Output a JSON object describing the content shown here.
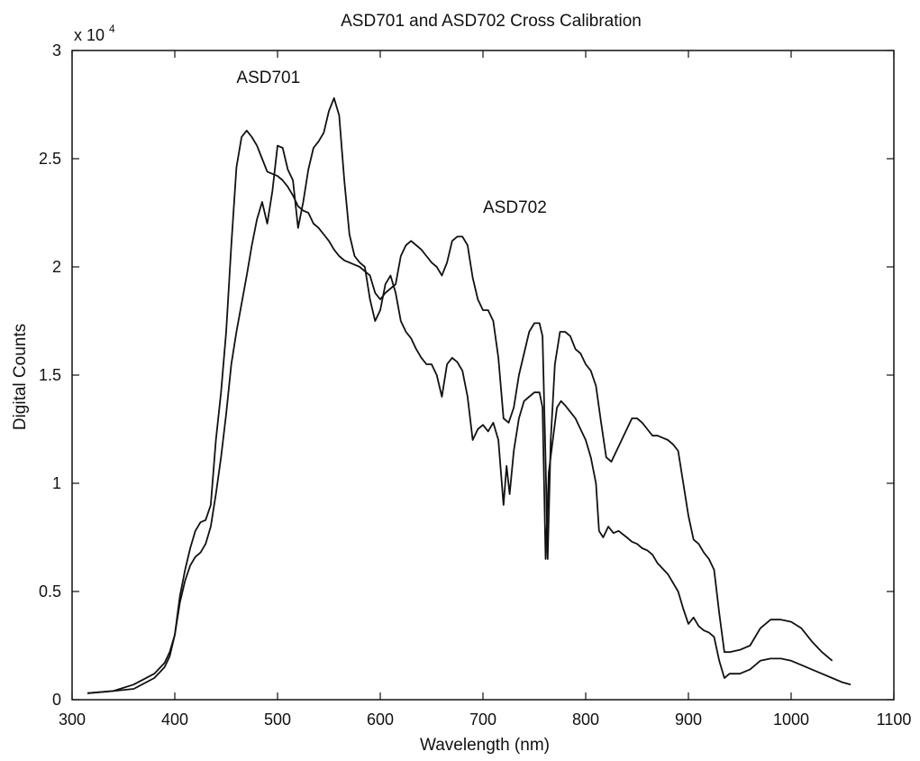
{
  "chart_data": {
    "type": "line",
    "title": "ASD701 and ASD702 Cross Calibration",
    "xlabel": "Wavelength (nm)",
    "ylabel": "Digital Counts",
    "xlim": [
      300,
      1100
    ],
    "ylim": [
      0,
      3
    ],
    "y_multiplier_base": "x 10",
    "y_multiplier_exponent": "4",
    "xticks": [
      300,
      400,
      500,
      600,
      700,
      800,
      900,
      1000,
      1100
    ],
    "xtick_labels": [
      "300",
      "400",
      "500",
      "600",
      "700",
      "800",
      "900",
      "1000",
      "1100"
    ],
    "yticks": [
      0,
      0.5,
      1,
      1.5,
      2,
      2.5,
      3
    ],
    "ytick_labels": [
      "0",
      "0.5",
      "1",
      "1.5",
      "2",
      "2.5",
      "3"
    ],
    "grid": false,
    "series": [
      {
        "name": "ASD701",
        "label_pos": [
          460,
          2.85
        ],
        "points": [
          [
            315,
            0.03
          ],
          [
            340,
            0.04
          ],
          [
            360,
            0.07
          ],
          [
            380,
            0.12
          ],
          [
            390,
            0.17
          ],
          [
            395,
            0.22
          ],
          [
            400,
            0.3
          ],
          [
            405,
            0.48
          ],
          [
            410,
            0.6
          ],
          [
            415,
            0.7
          ],
          [
            420,
            0.78
          ],
          [
            425,
            0.82
          ],
          [
            430,
            0.83
          ],
          [
            435,
            0.9
          ],
          [
            440,
            1.2
          ],
          [
            445,
            1.42
          ],
          [
            450,
            1.7
          ],
          [
            455,
            2.1
          ],
          [
            460,
            2.46
          ],
          [
            465,
            2.6
          ],
          [
            470,
            2.63
          ],
          [
            475,
            2.6
          ],
          [
            480,
            2.56
          ],
          [
            485,
            2.5
          ],
          [
            490,
            2.44
          ],
          [
            495,
            2.43
          ],
          [
            500,
            2.42
          ],
          [
            505,
            2.4
          ],
          [
            510,
            2.37
          ],
          [
            515,
            2.33
          ],
          [
            520,
            2.28
          ],
          [
            525,
            2.26
          ],
          [
            530,
            2.25
          ],
          [
            535,
            2.2
          ],
          [
            540,
            2.18
          ],
          [
            545,
            2.15
          ],
          [
            550,
            2.12
          ],
          [
            555,
            2.08
          ],
          [
            560,
            2.05
          ],
          [
            565,
            2.03
          ],
          [
            570,
            2.02
          ],
          [
            575,
            2.01
          ],
          [
            580,
            2.0
          ],
          [
            585,
            1.98
          ],
          [
            590,
            1.96
          ],
          [
            595,
            1.88
          ],
          [
            600,
            1.85
          ],
          [
            605,
            1.88
          ],
          [
            610,
            1.9
          ],
          [
            615,
            1.92
          ],
          [
            620,
            2.05
          ],
          [
            625,
            2.1
          ],
          [
            630,
            2.12
          ],
          [
            635,
            2.1
          ],
          [
            640,
            2.08
          ],
          [
            645,
            2.05
          ],
          [
            650,
            2.02
          ],
          [
            655,
            2.0
          ],
          [
            660,
            1.96
          ],
          [
            665,
            2.02
          ],
          [
            670,
            2.12
          ],
          [
            675,
            2.14
          ],
          [
            680,
            2.14
          ],
          [
            685,
            2.1
          ],
          [
            690,
            1.95
          ],
          [
            695,
            1.85
          ],
          [
            700,
            1.8
          ],
          [
            705,
            1.8
          ],
          [
            710,
            1.75
          ],
          [
            715,
            1.58
          ],
          [
            720,
            1.3
          ],
          [
            725,
            1.28
          ],
          [
            730,
            1.35
          ],
          [
            735,
            1.5
          ],
          [
            740,
            1.6
          ],
          [
            745,
            1.7
          ],
          [
            750,
            1.74
          ],
          [
            755,
            1.74
          ],
          [
            758,
            1.68
          ],
          [
            761,
            1.1
          ],
          [
            763,
            0.65
          ],
          [
            766,
            1.2
          ],
          [
            770,
            1.55
          ],
          [
            775,
            1.7
          ],
          [
            780,
            1.7
          ],
          [
            785,
            1.68
          ],
          [
            790,
            1.62
          ],
          [
            795,
            1.6
          ],
          [
            800,
            1.55
          ],
          [
            805,
            1.52
          ],
          [
            810,
            1.45
          ],
          [
            815,
            1.28
          ],
          [
            820,
            1.12
          ],
          [
            825,
            1.1
          ],
          [
            830,
            1.15
          ],
          [
            835,
            1.2
          ],
          [
            840,
            1.25
          ],
          [
            845,
            1.3
          ],
          [
            850,
            1.3
          ],
          [
            855,
            1.28
          ],
          [
            860,
            1.25
          ],
          [
            865,
            1.22
          ],
          [
            870,
            1.22
          ],
          [
            875,
            1.21
          ],
          [
            880,
            1.2
          ],
          [
            885,
            1.18
          ],
          [
            890,
            1.15
          ],
          [
            895,
            1.0
          ],
          [
            900,
            0.85
          ],
          [
            905,
            0.74
          ],
          [
            910,
            0.72
          ],
          [
            915,
            0.68
          ],
          [
            920,
            0.65
          ],
          [
            925,
            0.6
          ],
          [
            930,
            0.4
          ],
          [
            935,
            0.22
          ],
          [
            940,
            0.22
          ],
          [
            950,
            0.23
          ],
          [
            960,
            0.25
          ],
          [
            970,
            0.33
          ],
          [
            980,
            0.37
          ],
          [
            990,
            0.37
          ],
          [
            1000,
            0.36
          ],
          [
            1010,
            0.33
          ],
          [
            1020,
            0.27
          ],
          [
            1030,
            0.22
          ],
          [
            1040,
            0.18
          ]
        ]
      },
      {
        "name": "ASD702",
        "label_pos": [
          700,
          2.25
        ],
        "points": [
          [
            315,
            0.03
          ],
          [
            340,
            0.04
          ],
          [
            360,
            0.05
          ],
          [
            380,
            0.1
          ],
          [
            390,
            0.15
          ],
          [
            395,
            0.2
          ],
          [
            400,
            0.3
          ],
          [
            405,
            0.45
          ],
          [
            410,
            0.55
          ],
          [
            415,
            0.62
          ],
          [
            420,
            0.66
          ],
          [
            425,
            0.68
          ],
          [
            430,
            0.72
          ],
          [
            435,
            0.8
          ],
          [
            440,
            0.95
          ],
          [
            445,
            1.12
          ],
          [
            450,
            1.32
          ],
          [
            455,
            1.55
          ],
          [
            460,
            1.7
          ],
          [
            465,
            1.83
          ],
          [
            470,
            1.96
          ],
          [
            475,
            2.1
          ],
          [
            480,
            2.22
          ],
          [
            485,
            2.3
          ],
          [
            490,
            2.2
          ],
          [
            495,
            2.35
          ],
          [
            500,
            2.56
          ],
          [
            505,
            2.55
          ],
          [
            510,
            2.45
          ],
          [
            515,
            2.4
          ],
          [
            520,
            2.18
          ],
          [
            525,
            2.3
          ],
          [
            530,
            2.45
          ],
          [
            535,
            2.55
          ],
          [
            540,
            2.58
          ],
          [
            545,
            2.62
          ],
          [
            550,
            2.72
          ],
          [
            555,
            2.78
          ],
          [
            560,
            2.7
          ],
          [
            565,
            2.4
          ],
          [
            570,
            2.15
          ],
          [
            575,
            2.05
          ],
          [
            580,
            2.02
          ],
          [
            585,
            2.0
          ],
          [
            590,
            1.85
          ],
          [
            595,
            1.75
          ],
          [
            600,
            1.8
          ],
          [
            605,
            1.92
          ],
          [
            610,
            1.96
          ],
          [
            615,
            1.88
          ],
          [
            620,
            1.75
          ],
          [
            625,
            1.7
          ],
          [
            630,
            1.67
          ],
          [
            635,
            1.62
          ],
          [
            640,
            1.58
          ],
          [
            645,
            1.55
          ],
          [
            650,
            1.55
          ],
          [
            655,
            1.5
          ],
          [
            660,
            1.4
          ],
          [
            665,
            1.55
          ],
          [
            670,
            1.58
          ],
          [
            675,
            1.56
          ],
          [
            680,
            1.52
          ],
          [
            685,
            1.4
          ],
          [
            690,
            1.2
          ],
          [
            695,
            1.25
          ],
          [
            700,
            1.27
          ],
          [
            705,
            1.24
          ],
          [
            710,
            1.28
          ],
          [
            715,
            1.2
          ],
          [
            720,
            0.9
          ],
          [
            723,
            1.08
          ],
          [
            726,
            0.95
          ],
          [
            730,
            1.15
          ],
          [
            735,
            1.3
          ],
          [
            740,
            1.38
          ],
          [
            745,
            1.4
          ],
          [
            750,
            1.42
          ],
          [
            755,
            1.42
          ],
          [
            758,
            1.35
          ],
          [
            761,
            0.65
          ],
          [
            764,
            1.05
          ],
          [
            768,
            1.2
          ],
          [
            772,
            1.35
          ],
          [
            776,
            1.38
          ],
          [
            780,
            1.36
          ],
          [
            785,
            1.33
          ],
          [
            790,
            1.3
          ],
          [
            795,
            1.25
          ],
          [
            800,
            1.2
          ],
          [
            805,
            1.12
          ],
          [
            810,
            1.0
          ],
          [
            813,
            0.78
          ],
          [
            817,
            0.75
          ],
          [
            822,
            0.8
          ],
          [
            827,
            0.77
          ],
          [
            832,
            0.78
          ],
          [
            840,
            0.75
          ],
          [
            845,
            0.73
          ],
          [
            850,
            0.72
          ],
          [
            855,
            0.7
          ],
          [
            860,
            0.69
          ],
          [
            865,
            0.67
          ],
          [
            870,
            0.63
          ],
          [
            880,
            0.58
          ],
          [
            890,
            0.5
          ],
          [
            895,
            0.42
          ],
          [
            900,
            0.35
          ],
          [
            905,
            0.38
          ],
          [
            910,
            0.34
          ],
          [
            915,
            0.32
          ],
          [
            920,
            0.31
          ],
          [
            925,
            0.29
          ],
          [
            930,
            0.18
          ],
          [
            935,
            0.1
          ],
          [
            940,
            0.12
          ],
          [
            950,
            0.12
          ],
          [
            960,
            0.14
          ],
          [
            970,
            0.18
          ],
          [
            980,
            0.19
          ],
          [
            990,
            0.19
          ],
          [
            1000,
            0.18
          ],
          [
            1010,
            0.16
          ],
          [
            1020,
            0.14
          ],
          [
            1030,
            0.12
          ],
          [
            1040,
            0.1
          ],
          [
            1050,
            0.08
          ],
          [
            1058,
            0.07
          ]
        ]
      }
    ]
  }
}
